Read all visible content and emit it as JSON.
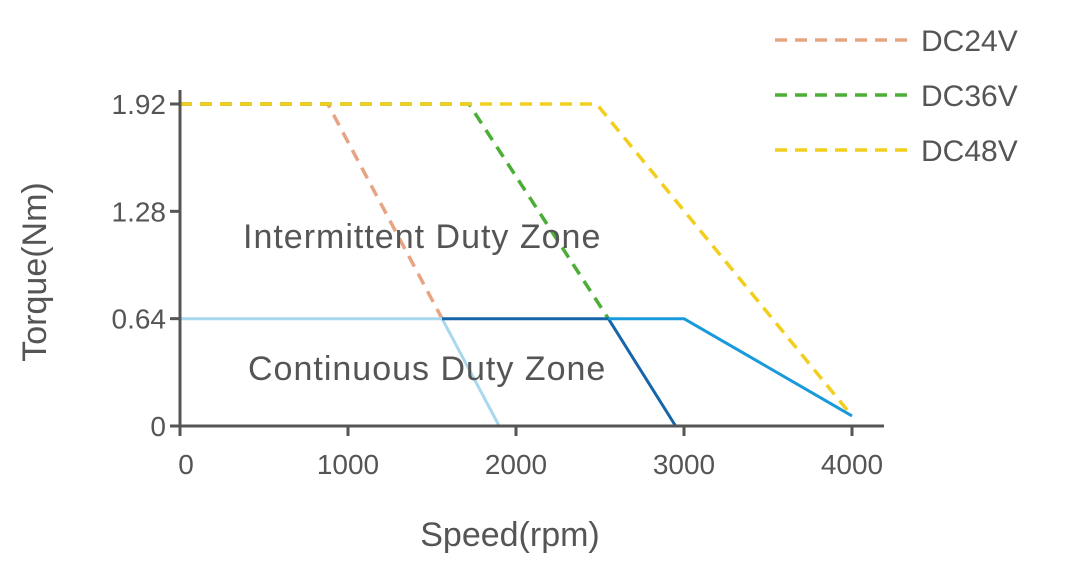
{
  "chart_data": {
    "type": "line",
    "xlabel": "Speed(rpm)",
    "ylabel": "Torque(Nm)",
    "xlim": [
      0,
      4000
    ],
    "ylim": [
      0,
      1.92
    ],
    "x_ticks": [
      0,
      1000,
      2000,
      3000,
      4000
    ],
    "y_ticks": [
      0,
      0.64,
      1.28,
      1.92
    ],
    "x_tick_labels": [
      "0",
      "1000",
      "2000",
      "3000",
      "4000"
    ],
    "y_tick_labels": [
      "0",
      "0.64",
      "1.28",
      "1.92"
    ],
    "grid": false,
    "legend_position": "top-right",
    "annotations": {
      "intermittent": "Intermittent Duty Zone",
      "continuous": "Continuous Duty Zone"
    },
    "series": [
      {
        "name": "DC24V",
        "style": "dashed",
        "color": "#E8A482",
        "x": [
          0,
          880,
          1560
        ],
        "y": [
          1.92,
          1.92,
          0.64
        ]
      },
      {
        "name": "DC36V",
        "style": "dashed",
        "color": "#4BAE35",
        "x": [
          0,
          1720,
          2550
        ],
        "y": [
          1.92,
          1.92,
          0.64
        ]
      },
      {
        "name": "DC48V",
        "style": "dashed",
        "color": "#F2CE1E",
        "x": [
          0,
          2480,
          4000
        ],
        "y": [
          1.92,
          1.92,
          0.06
        ]
      },
      {
        "style": "solid",
        "color": "#A8D8EE",
        "x": [
          0,
          1560,
          1900
        ],
        "y": [
          0.64,
          0.64,
          0
        ]
      },
      {
        "style": "solid",
        "color": "#1665A8",
        "x": [
          1560,
          2550,
          2950
        ],
        "y": [
          0.64,
          0.64,
          0
        ]
      },
      {
        "style": "solid",
        "color": "#1A9ADB",
        "x": [
          2550,
          3000,
          4000
        ],
        "y": [
          0.64,
          0.64,
          0.06
        ]
      }
    ]
  }
}
